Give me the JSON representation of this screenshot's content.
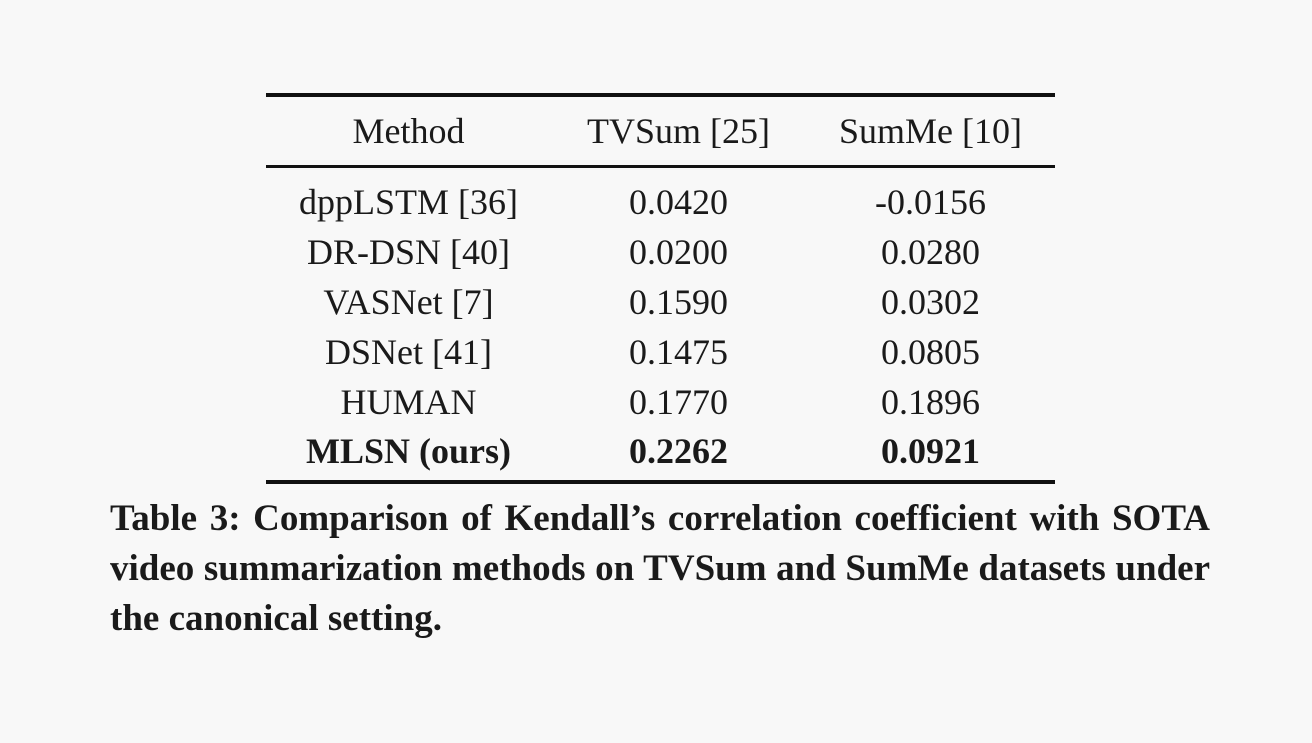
{
  "table": {
    "headers": {
      "method": "Method",
      "tvsum": "TVSum [25]",
      "summe": "SumMe [10]"
    },
    "rows": [
      {
        "method": "dppLSTM [36]",
        "tvsum": "0.0420",
        "summe": "-0.0156"
      },
      {
        "method": "DR-DSN [40]",
        "tvsum": "0.0200",
        "summe": "0.0280"
      },
      {
        "method": "VASNet [7]",
        "tvsum": "0.1590",
        "summe": "0.0302"
      },
      {
        "method": "DSNet [41]",
        "tvsum": "0.1475",
        "summe": "0.0805"
      },
      {
        "method": "HUMAN",
        "tvsum": "0.1770",
        "summe": "0.1896"
      },
      {
        "method": "MLSN (ours)",
        "tvsum": "0.2262",
        "summe": "0.0921"
      }
    ]
  },
  "caption": "Table 3: Comparison of Kendall’s correlation coefficient with SOTA video summarization methods on TVSum and SumMe datasets under the canonical setting."
}
